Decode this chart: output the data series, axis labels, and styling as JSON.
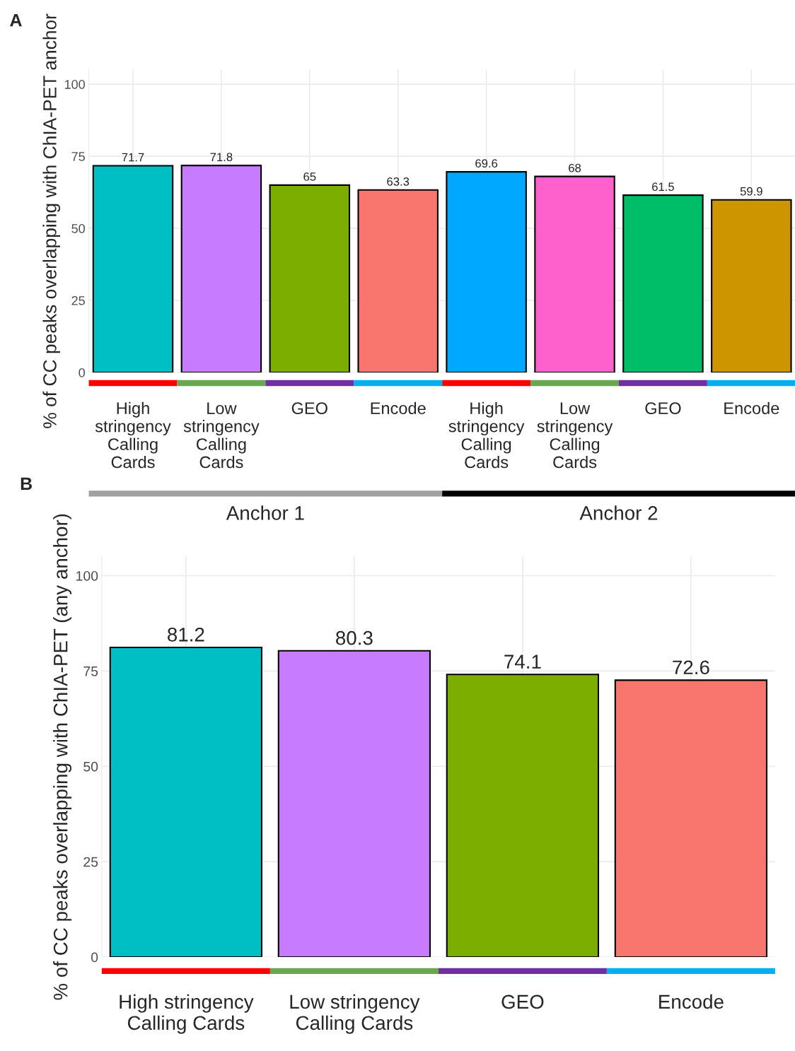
{
  "chart_data": [
    {
      "type": "bar",
      "ylabel": "% of CC peaks overlapping with ChIA-PET anchor",
      "categories": [
        "High\nstringency\nCalling\nCards",
        "Low\nstringency\nCalling\nCards",
        "GEO",
        "Encode",
        "High\nstringency\nCalling\nCards",
        "Low\nstringency\nCalling\nCards",
        "GEO",
        "Encode"
      ],
      "values": [
        71.7,
        71.8,
        65,
        63.3,
        69.6,
        68,
        61.5,
        59.9
      ],
      "colors": [
        "#00bfc4",
        "#c77cff",
        "#7cae00",
        "#f8766d",
        "#00a9ff",
        "#ff61cc",
        "#00be67",
        "#cd9600"
      ],
      "data_labels": true,
      "ylim": [
        0,
        105
      ],
      "yticks": [
        0,
        25,
        50,
        75,
        100
      ],
      "grid": true,
      "annotations": [
        "A",
        "Anchor 1",
        "Anchor 2"
      ]
    },
    {
      "type": "bar",
      "ylabel": "% of CC peaks overlapping with ChIA-PET (any anchor)",
      "categories": [
        "High stringency\nCalling Cards",
        "Low stringency\nCalling Cards",
        "GEO",
        "Encode"
      ],
      "values": [
        81.2,
        80.3,
        74.1,
        72.6
      ],
      "colors": [
        "#00bfc4",
        "#c77cff",
        "#7cae00",
        "#f8766d"
      ],
      "data_labels": true,
      "ylim": [
        0,
        105
      ],
      "yticks": [
        0,
        25,
        50,
        75,
        100
      ],
      "grid": true,
      "annotations": [
        "B"
      ]
    }
  ]
}
